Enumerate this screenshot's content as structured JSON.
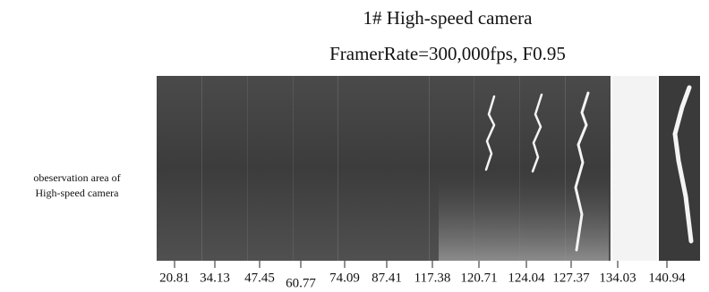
{
  "header": {
    "title": "1#   High-speed camera",
    "subtitle": "FramerRate=300,000fps, F0.95"
  },
  "side_label": [
    "obeservation area of",
    "High-speed camera"
  ],
  "frames": {
    "times": [
      "20.81",
      "34.13",
      "47.45",
      "60.77",
      "74.09",
      "87.41",
      "117.38",
      "120.71",
      "124.04",
      "127.37",
      "134.03",
      "140.94"
    ]
  }
}
